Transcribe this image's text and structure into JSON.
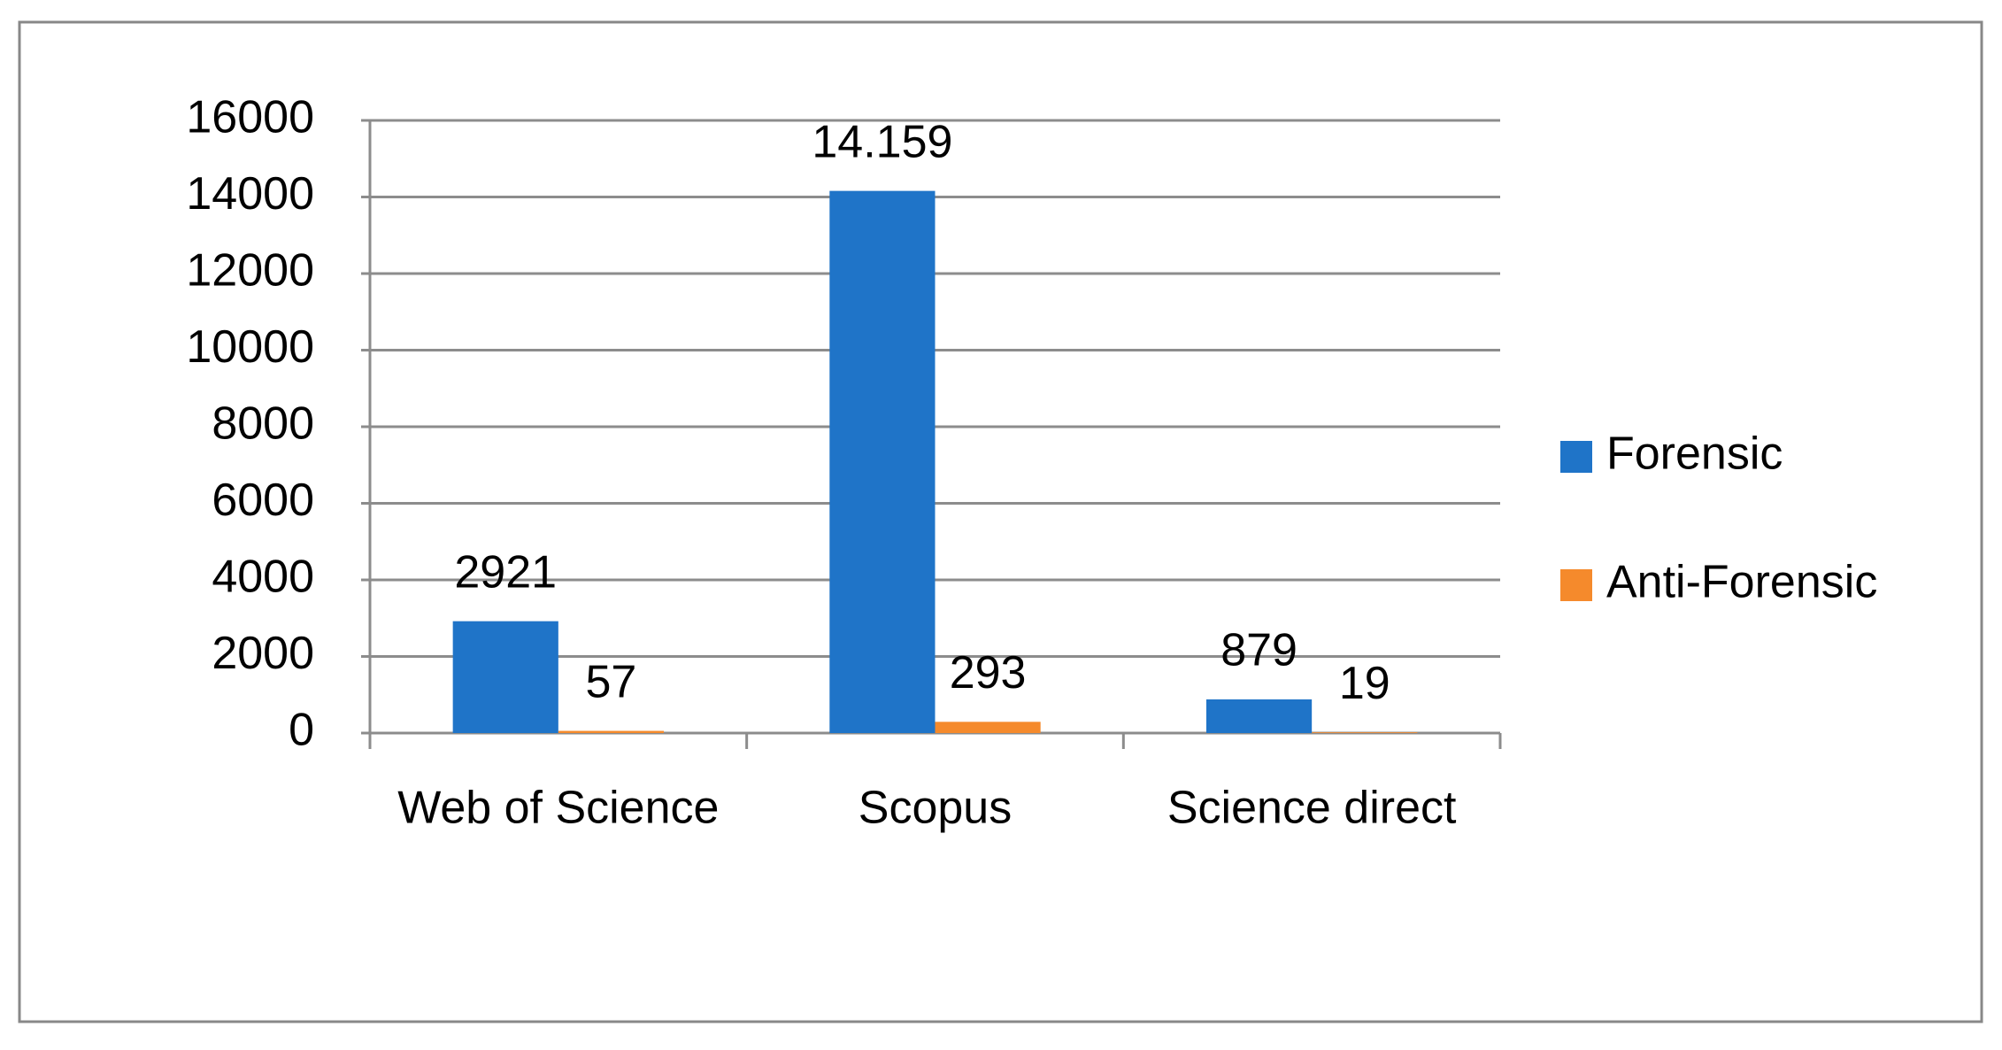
{
  "chart_data": {
    "type": "bar",
    "categories": [
      "Web of Science",
      "Scopus",
      "Science direct"
    ],
    "series": [
      {
        "name": "Forensic",
        "color": "#1f74c8",
        "values": [
          2921,
          14159,
          879
        ],
        "value_labels": [
          "2921",
          "14.159",
          "879"
        ]
      },
      {
        "name": "Anti-Forensic",
        "color": "#f58a2c",
        "values": [
          57,
          293,
          19
        ]
      }
    ],
    "ylim": [
      0,
      16000
    ],
    "yticks": [
      0,
      2000,
      4000,
      6000,
      8000,
      10000,
      12000,
      14000,
      16000
    ],
    "grid": true,
    "legend": "right"
  }
}
